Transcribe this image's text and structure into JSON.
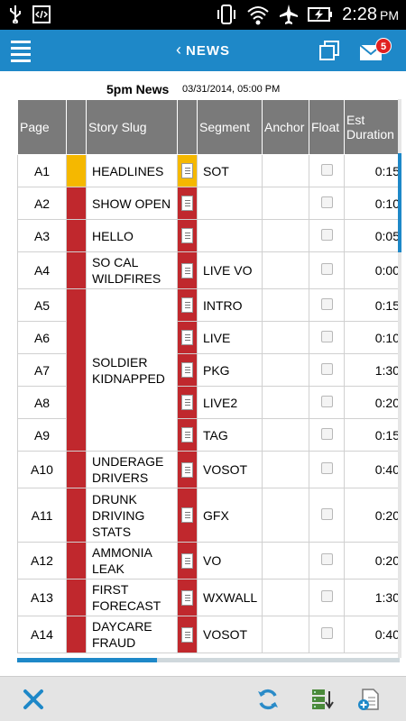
{
  "status_bar": {
    "time": "2:28",
    "ampm": "PM",
    "icons": [
      "usb-icon",
      "developer-icon",
      "vibrate-icon",
      "wifi-icon",
      "airplane-icon",
      "battery-charging-icon"
    ]
  },
  "app_bar": {
    "title": "NEWS",
    "back_glyph": "‹",
    "mail_badge": "5",
    "icons": [
      "menu-icon",
      "back-chevron-icon",
      "copy-icon",
      "mail-icon"
    ]
  },
  "rundown": {
    "show": "5pm News",
    "date": "03/31/2014, 05:00 PM"
  },
  "table": {
    "headers": {
      "page": "Page",
      "color": "",
      "slug": "Story Slug",
      "script": "",
      "segment": "Segment",
      "anchor": "Anchor",
      "float": "Float",
      "duration_1": "Est",
      "duration_2": "Duration"
    },
    "rows": [
      {
        "page": "A1",
        "color": "yellow",
        "slug": "HEADLINES",
        "segment": "SOT",
        "anchor": "",
        "dur": "0:15"
      },
      {
        "page": "A2",
        "color": "red",
        "slug": "SHOW OPEN",
        "segment": "",
        "anchor": "",
        "dur": "0:10"
      },
      {
        "page": "A3",
        "color": "red",
        "slug": "HELLO",
        "segment": "",
        "anchor": "",
        "dur": "0:05"
      },
      {
        "page": "A4",
        "color": "red",
        "slug": "SO CAL WILDFIRES",
        "segment": "LIVE VO",
        "anchor": "",
        "dur": "0:00"
      },
      {
        "page": "A5",
        "color": "red",
        "slug": "SOLDIER KIDNAPPED",
        "segment": "INTRO",
        "anchor": "",
        "dur": "0:15"
      },
      {
        "page": "A6",
        "color": "red",
        "slug": "",
        "segment": "LIVE",
        "anchor": "",
        "dur": "0:10"
      },
      {
        "page": "A7",
        "color": "red",
        "slug": "",
        "segment": "PKG",
        "anchor": "",
        "dur": "1:30"
      },
      {
        "page": "A8",
        "color": "red",
        "slug": "",
        "segment": "LIVE2",
        "anchor": "",
        "dur": "0:20"
      },
      {
        "page": "A9",
        "color": "red",
        "slug": "",
        "segment": "TAG",
        "anchor": "",
        "dur": "0:15"
      },
      {
        "page": "A10",
        "color": "red",
        "slug": "UNDERAGE DRIVERS",
        "segment": "VOSOT",
        "anchor": "",
        "dur": "0:40"
      },
      {
        "page": "A11",
        "color": "red",
        "slug": "DRUNK DRIVING STATS",
        "segment": "GFX",
        "anchor": "",
        "dur": "0:20"
      },
      {
        "page": "A12",
        "color": "red",
        "slug": "AMMONIA LEAK",
        "segment": "VO",
        "anchor": "",
        "dur": "0:20"
      },
      {
        "page": "A13",
        "color": "red",
        "slug": "FIRST FORECAST",
        "segment": "WXWALL",
        "anchor": "",
        "dur": "1:30"
      },
      {
        "page": "A14",
        "color": "red",
        "slug": "DAYCARE FRAUD",
        "segment": "VOSOT",
        "anchor": "",
        "dur": "0:40"
      }
    ]
  },
  "bottom_bar": {
    "icons": [
      "close-icon",
      "refresh-icon",
      "server-download-icon",
      "add-document-icon"
    ]
  },
  "colors": {
    "accent": "#1e88c8",
    "story_red": "#c0282d",
    "story_yellow": "#f5b800",
    "header_grey": "#7a7a7a"
  }
}
